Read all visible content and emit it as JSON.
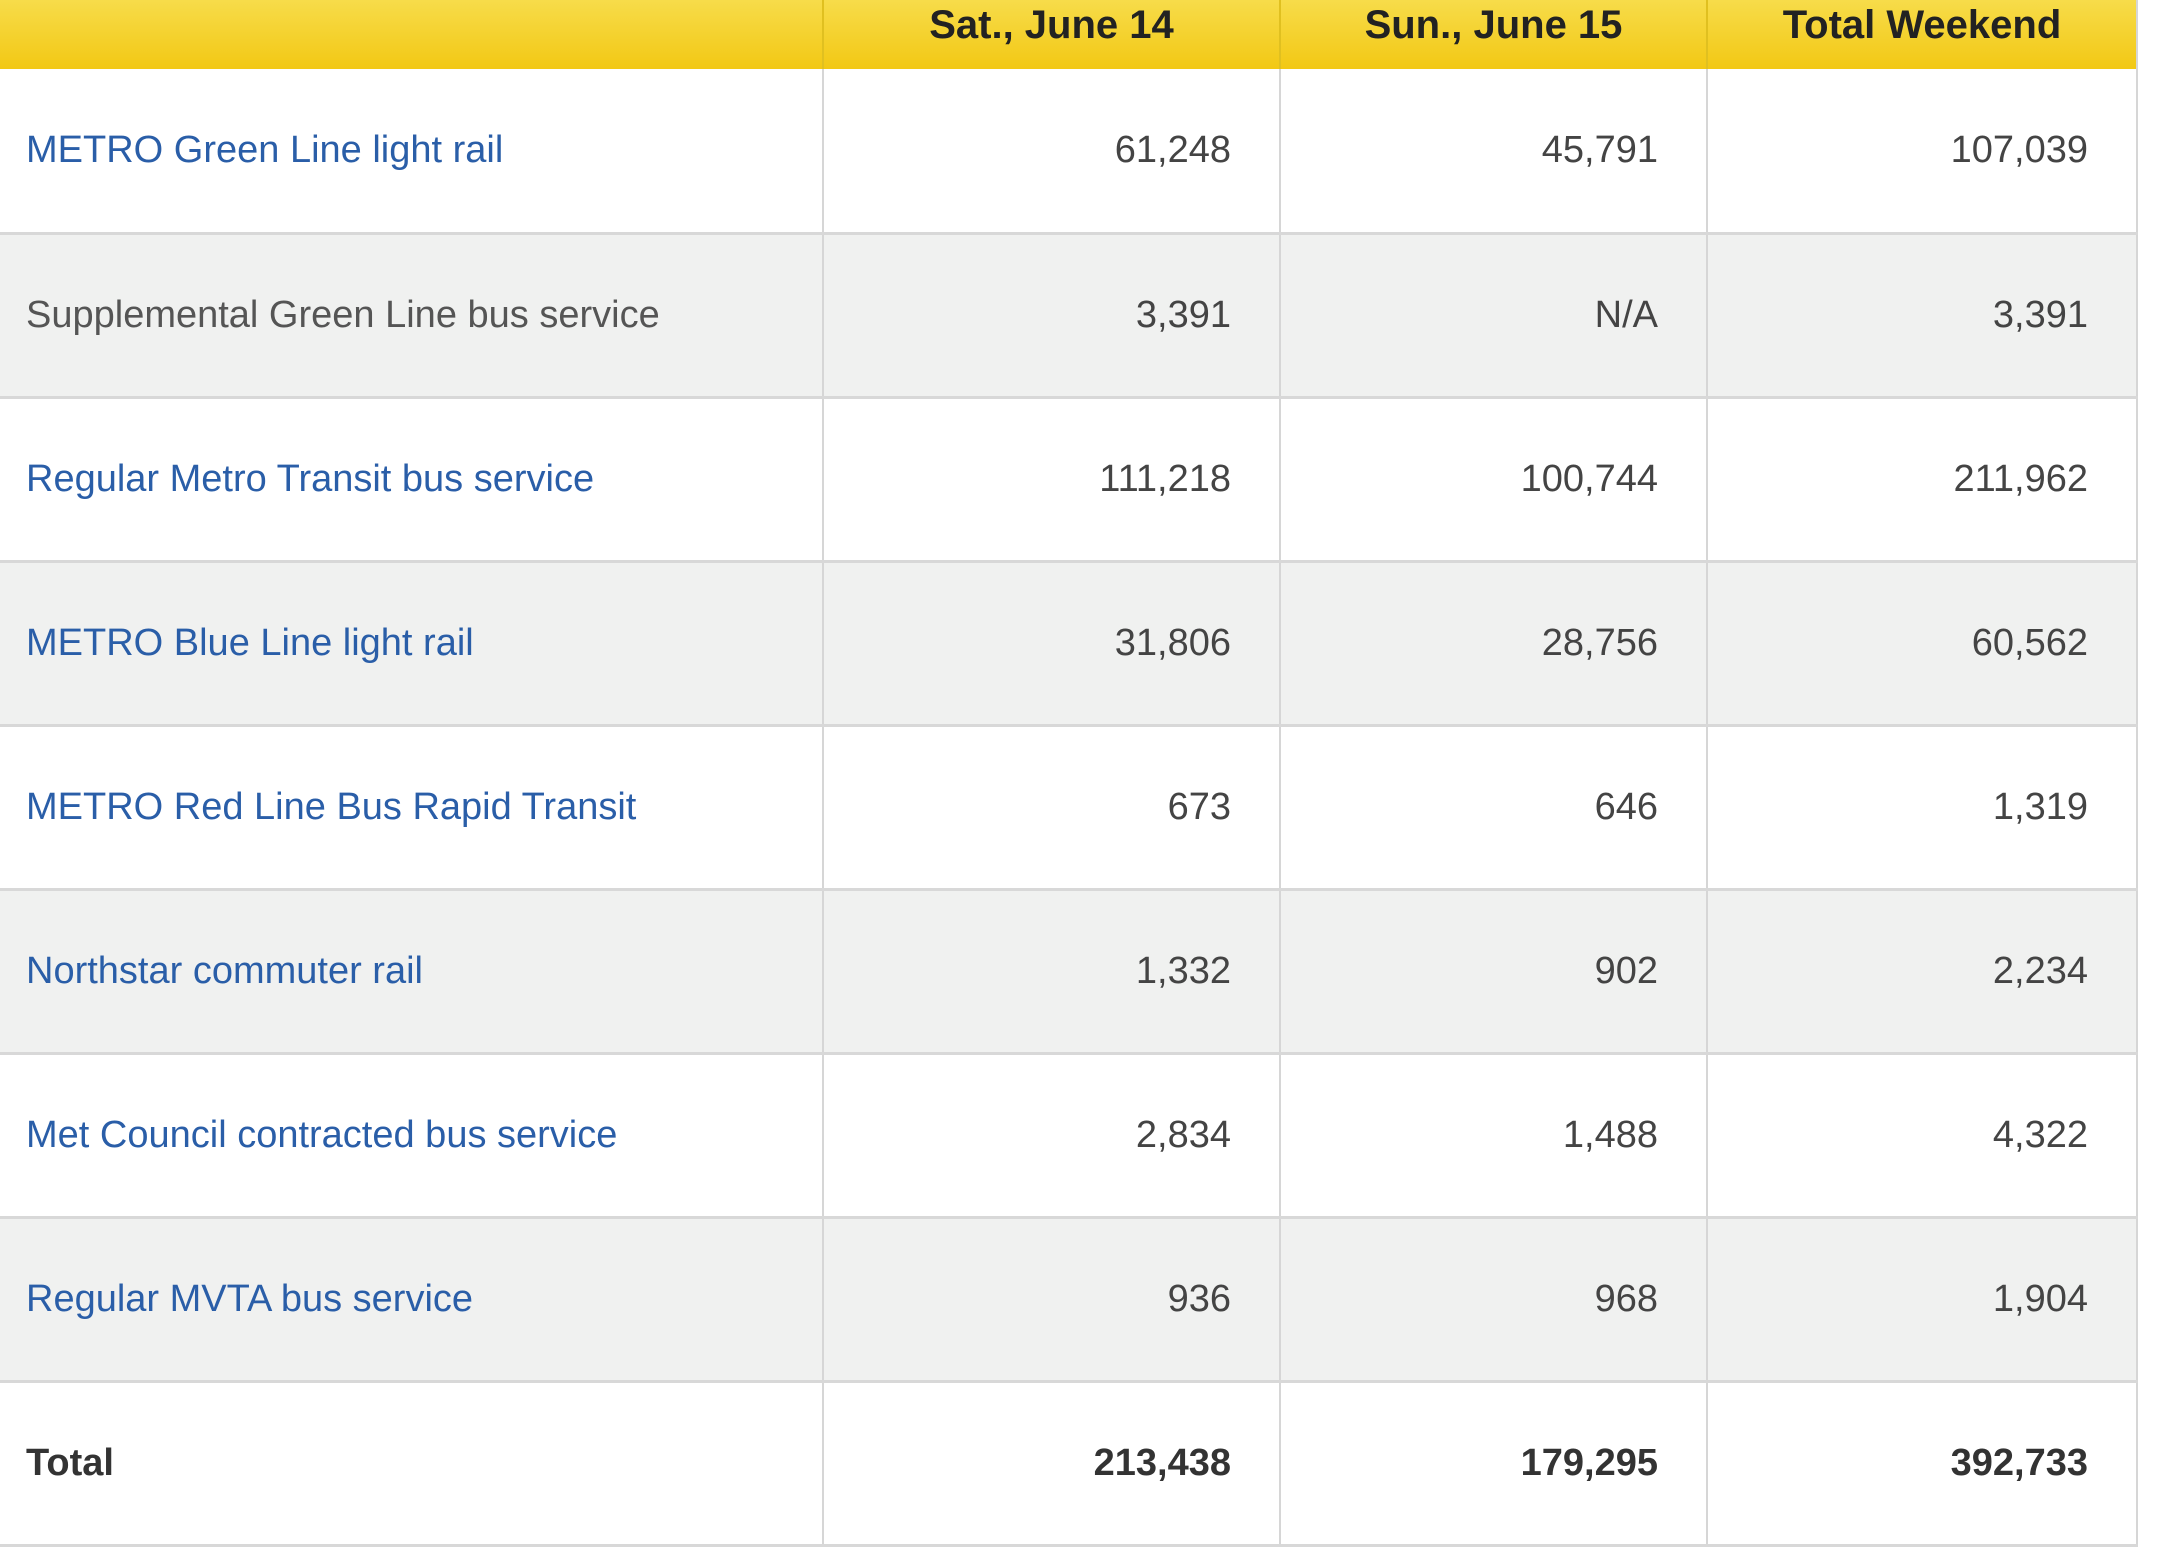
{
  "header": {
    "blank": "",
    "columns": [
      "Sat., June 14",
      "Sun., June 15",
      "Total Weekend"
    ]
  },
  "rows": [
    {
      "label": "METRO Green Line light rail",
      "link": true,
      "sat": "61,248",
      "sun": "45,791",
      "total": "107,039"
    },
    {
      "label": "Supplemental Green Line bus service",
      "link": false,
      "sat": "3,391",
      "sun": "N/A",
      "total": "3,391"
    },
    {
      "label": "Regular Metro Transit bus service",
      "link": true,
      "sat": "111,218",
      "sun": "100,744",
      "total": "211,962"
    },
    {
      "label": "METRO Blue Line light rail",
      "link": true,
      "sat": "31,806",
      "sun": "28,756",
      "total": "60,562"
    },
    {
      "label": "METRO Red Line Bus Rapid Transit",
      "link": true,
      "sat": "673",
      "sun": "646",
      "total": "1,319"
    },
    {
      "label": "Northstar commuter rail",
      "link": true,
      "sat": "1,332",
      "sun": "902",
      "total": "2,234"
    },
    {
      "label": "Met Council contracted bus service",
      "link": true,
      "sat": "2,834",
      "sun": "1,488",
      "total": "4,322"
    },
    {
      "label": "Regular MVTA bus service",
      "link": true,
      "sat": "936",
      "sun": "968",
      "total": "1,904"
    }
  ],
  "total": {
    "label": "Total",
    "sat": "213,438",
    "sun": "179,295",
    "total": "392,733"
  }
}
